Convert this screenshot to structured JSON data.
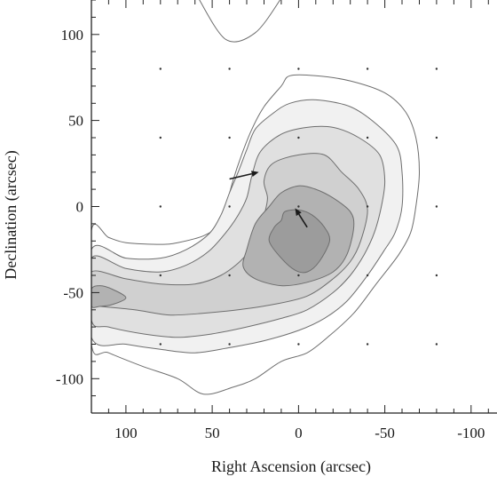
{
  "chart_data": {
    "type": "contour",
    "title": "",
    "xlabel": "Right Ascension (arcsec)",
    "ylabel": "Declination (arcsec)",
    "xlim": [
      120,
      -115
    ],
    "ylim": [
      -120,
      120
    ],
    "x_ticks": [
      {
        "value": 100,
        "label": "100"
      },
      {
        "value": 50,
        "label": "50"
      },
      {
        "value": 0,
        "label": "0"
      },
      {
        "value": -50,
        "label": "-50"
      },
      {
        "value": -100,
        "label": "-100"
      }
    ],
    "y_ticks": [
      {
        "value": 100,
        "label": "100"
      },
      {
        "value": 50,
        "label": "50"
      },
      {
        "value": 0,
        "label": "0"
      },
      {
        "value": -50,
        "label": "-50"
      },
      {
        "value": -100,
        "label": "-100"
      }
    ],
    "grid_dots": {
      "x": [
        80,
        40,
        0,
        -40,
        -80
      ],
      "y": [
        80,
        40,
        0,
        -40,
        -80
      ]
    },
    "contour_levels": [
      {
        "level": 1,
        "fill": "#ffffff",
        "points": [
          [
            120,
            -14
          ],
          [
            110,
            -18
          ],
          [
            100,
            -21
          ],
          [
            80,
            -22
          ],
          [
            70,
            -21
          ],
          [
            55,
            -17
          ],
          [
            45,
            -10
          ],
          [
            42,
            0
          ],
          [
            38,
            15
          ],
          [
            33,
            30
          ],
          [
            27,
            45
          ],
          [
            20,
            58
          ],
          [
            10,
            70
          ],
          [
            5,
            76
          ],
          [
            -10,
            76
          ],
          [
            -30,
            73
          ],
          [
            -50,
            66
          ],
          [
            -62,
            55
          ],
          [
            -68,
            40
          ],
          [
            -70,
            20
          ],
          [
            -68,
            0
          ],
          [
            -65,
            -15
          ],
          [
            -58,
            -28
          ],
          [
            -45,
            -45
          ],
          [
            -32,
            -62
          ],
          [
            -18,
            -75
          ],
          [
            -5,
            -85
          ],
          [
            10,
            -90
          ],
          [
            25,
            -100
          ],
          [
            38,
            -105
          ],
          [
            55,
            -109
          ],
          [
            70,
            -100
          ],
          [
            90,
            -93
          ],
          [
            110,
            -85
          ],
          [
            120,
            -80
          ]
        ]
      },
      {
        "level": 2,
        "fill": "#f1f1f1",
        "points": [
          [
            120,
            -25
          ],
          [
            100,
            -30
          ],
          [
            80,
            -30
          ],
          [
            65,
            -25
          ],
          [
            52,
            -16
          ],
          [
            45,
            -5
          ],
          [
            40,
            8
          ],
          [
            35,
            20
          ],
          [
            30,
            33
          ],
          [
            25,
            45
          ],
          [
            15,
            54
          ],
          [
            5,
            60
          ],
          [
            -10,
            62
          ],
          [
            -30,
            58
          ],
          [
            -45,
            48
          ],
          [
            -57,
            35
          ],
          [
            -60,
            20
          ],
          [
            -60,
            0
          ],
          [
            -56,
            -15
          ],
          [
            -50,
            -25
          ],
          [
            -40,
            -40
          ],
          [
            -28,
            -55
          ],
          [
            -15,
            -65
          ],
          [
            0,
            -72
          ],
          [
            20,
            -78
          ],
          [
            40,
            -82
          ],
          [
            60,
            -85
          ],
          [
            80,
            -83
          ],
          [
            100,
            -80
          ],
          [
            120,
            -76
          ]
        ]
      },
      {
        "level": 3,
        "fill": "#e0e0e0",
        "points": [
          [
            120,
            -30
          ],
          [
            100,
            -36
          ],
          [
            80,
            -38
          ],
          [
            65,
            -34
          ],
          [
            52,
            -26
          ],
          [
            42,
            -15
          ],
          [
            35,
            -5
          ],
          [
            30,
            5
          ],
          [
            27,
            18
          ],
          [
            22,
            32
          ],
          [
            10,
            42
          ],
          [
            -5,
            46
          ],
          [
            -20,
            46
          ],
          [
            -35,
            40
          ],
          [
            -47,
            30
          ],
          [
            -50,
            15
          ],
          [
            -48,
            0
          ],
          [
            -44,
            -15
          ],
          [
            -38,
            -28
          ],
          [
            -30,
            -40
          ],
          [
            -20,
            -50
          ],
          [
            -5,
            -60
          ],
          [
            10,
            -65
          ],
          [
            30,
            -70
          ],
          [
            50,
            -74
          ],
          [
            70,
            -76
          ],
          [
            90,
            -74
          ],
          [
            110,
            -70
          ],
          [
            120,
            -66
          ]
        ]
      },
      {
        "level": 4,
        "fill": "#d0d0d0",
        "points": [
          [
            120,
            -38
          ],
          [
            100,
            -42
          ],
          [
            80,
            -45
          ],
          [
            60,
            -45
          ],
          [
            45,
            -40
          ],
          [
            32,
            -30
          ],
          [
            25,
            -18
          ],
          [
            20,
            -5
          ],
          [
            18,
            5
          ],
          [
            20,
            15
          ],
          [
            15,
            25
          ],
          [
            0,
            30
          ],
          [
            -15,
            30
          ],
          [
            -25,
            20
          ],
          [
            -35,
            10
          ],
          [
            -40,
            -2
          ],
          [
            -36,
            -20
          ],
          [
            -30,
            -32
          ],
          [
            -20,
            -42
          ],
          [
            -5,
            -52
          ],
          [
            15,
            -57
          ],
          [
            35,
            -60
          ],
          [
            55,
            -62
          ],
          [
            75,
            -63
          ],
          [
            95,
            -60
          ],
          [
            115,
            -58
          ],
          [
            120,
            -57
          ]
        ]
      },
      {
        "level": 5,
        "fill": "#b2b2b2",
        "points": [
          [
            30,
            -25
          ],
          [
            25,
            -10
          ],
          [
            17,
            0
          ],
          [
            10,
            8
          ],
          [
            0,
            12
          ],
          [
            -10,
            10
          ],
          [
            -20,
            5
          ],
          [
            -30,
            -3
          ],
          [
            -32,
            -12
          ],
          [
            -28,
            -28
          ],
          [
            -20,
            -38
          ],
          [
            -5,
            -44
          ],
          [
            10,
            -46
          ],
          [
            25,
            -42
          ],
          [
            32,
            -35
          ]
        ]
      },
      {
        "level": 6,
        "fill": "#9c9c9c",
        "points": [
          [
            10,
            -8
          ],
          [
            8,
            -3
          ],
          [
            0,
            -2
          ],
          [
            -8,
            -5
          ],
          [
            -15,
            -12
          ],
          [
            -18,
            -20
          ],
          [
            -12,
            -32
          ],
          [
            -5,
            -38
          ],
          [
            2,
            -37
          ],
          [
            10,
            -30
          ],
          [
            17,
            -20
          ],
          [
            14,
            -12
          ]
        ]
      },
      {
        "level": 5,
        "fill": "#b2b2b2",
        "points": [
          [
            120,
            -48
          ],
          [
            115,
            -46
          ],
          [
            108,
            -48
          ],
          [
            100,
            -53
          ],
          [
            108,
            -57
          ],
          [
            115,
            -58
          ],
          [
            120,
            -58
          ]
        ]
      }
    ],
    "open_contours": [
      {
        "points": [
          [
            58,
            121
          ],
          [
            42,
            97
          ],
          [
            25,
            101
          ],
          [
            10,
            121
          ]
        ]
      }
    ],
    "arrows": [
      {
        "from": [
          40,
          16
        ],
        "to": [
          23,
          20
        ]
      },
      {
        "from": [
          -5,
          -12
        ],
        "to": [
          2,
          -1
        ]
      }
    ]
  }
}
